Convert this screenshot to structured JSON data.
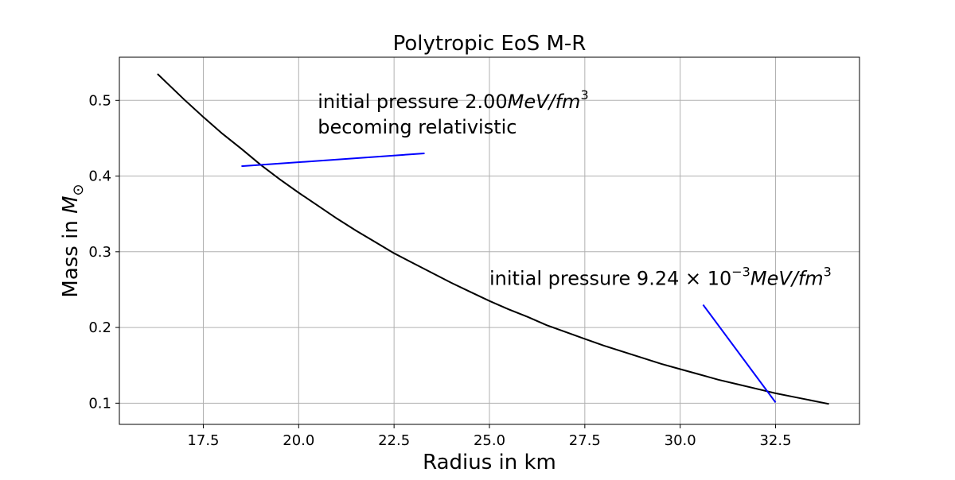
{
  "chart_data": {
    "type": "line",
    "title": "Polytropic EoS M-R",
    "xlabel": "Radius in km",
    "ylabel": {
      "prefix": "Mass in ",
      "symbol": "M",
      "subscript": "⊙"
    },
    "xlim": [
      15.3,
      34.7
    ],
    "ylim": [
      0.072,
      0.557
    ],
    "xticks": [
      17.5,
      20.0,
      22.5,
      25.0,
      27.5,
      30.0,
      32.5
    ],
    "xtick_labels": [
      "17.5",
      "20.0",
      "22.5",
      "25.0",
      "27.5",
      "30.0",
      "32.5"
    ],
    "yticks": [
      0.1,
      0.2,
      0.3,
      0.4,
      0.5
    ],
    "ytick_labels": [
      "0.1",
      "0.2",
      "0.3",
      "0.4",
      "0.5"
    ],
    "grid": true,
    "series": [
      {
        "color": "#000000",
        "points": [
          [
            16.3,
            0.535
          ],
          [
            17.0,
            0.501
          ],
          [
            17.5,
            0.478
          ],
          [
            18.0,
            0.456
          ],
          [
            18.5,
            0.436
          ],
          [
            19.0,
            0.415
          ],
          [
            19.5,
            0.396
          ],
          [
            20.0,
            0.378
          ],
          [
            20.5,
            0.361
          ],
          [
            21.0,
            0.344
          ],
          [
            21.5,
            0.328
          ],
          [
            22.0,
            0.313
          ],
          [
            22.5,
            0.298
          ],
          [
            23.0,
            0.285
          ],
          [
            23.5,
            0.272
          ],
          [
            24.0,
            0.259
          ],
          [
            24.5,
            0.247
          ],
          [
            25.0,
            0.235
          ],
          [
            25.5,
            0.224
          ],
          [
            26.0,
            0.214
          ],
          [
            26.5,
            0.203
          ],
          [
            27.0,
            0.194
          ],
          [
            27.5,
            0.185
          ],
          [
            28.0,
            0.176
          ],
          [
            28.5,
            0.168
          ],
          [
            29.0,
            0.16
          ],
          [
            29.5,
            0.152
          ],
          [
            30.0,
            0.145
          ],
          [
            30.5,
            0.138
          ],
          [
            31.0,
            0.131
          ],
          [
            31.5,
            0.125
          ],
          [
            32.0,
            0.119
          ],
          [
            32.5,
            0.113
          ],
          [
            33.0,
            0.108
          ],
          [
            33.5,
            0.103
          ],
          [
            33.9,
            0.099
          ]
        ]
      }
    ],
    "annotations": [
      {
        "lines": [
          {
            "text": "initial pressure 2.00",
            "italic": "MeV/fm",
            "sup": "3"
          },
          {
            "text": "becoming relativistic"
          }
        ],
        "text_anchor": [
          20.5,
          0.49
        ],
        "arrow_from": [
          23.3,
          0.43
        ],
        "arrow_to": [
          18.5,
          0.413
        ],
        "arrow_color": "#0000ff"
      },
      {
        "lines": [
          {
            "text": "initial pressure 9.24 × 10",
            "sup_mid": "−3",
            "italic": "MeV/fm",
            "sup": "3"
          }
        ],
        "text_anchor": [
          25.0,
          0.256
        ],
        "arrow_from": [
          30.6,
          0.23
        ],
        "arrow_to": [
          32.5,
          0.101
        ],
        "arrow_color": "#0000ff"
      }
    ]
  }
}
